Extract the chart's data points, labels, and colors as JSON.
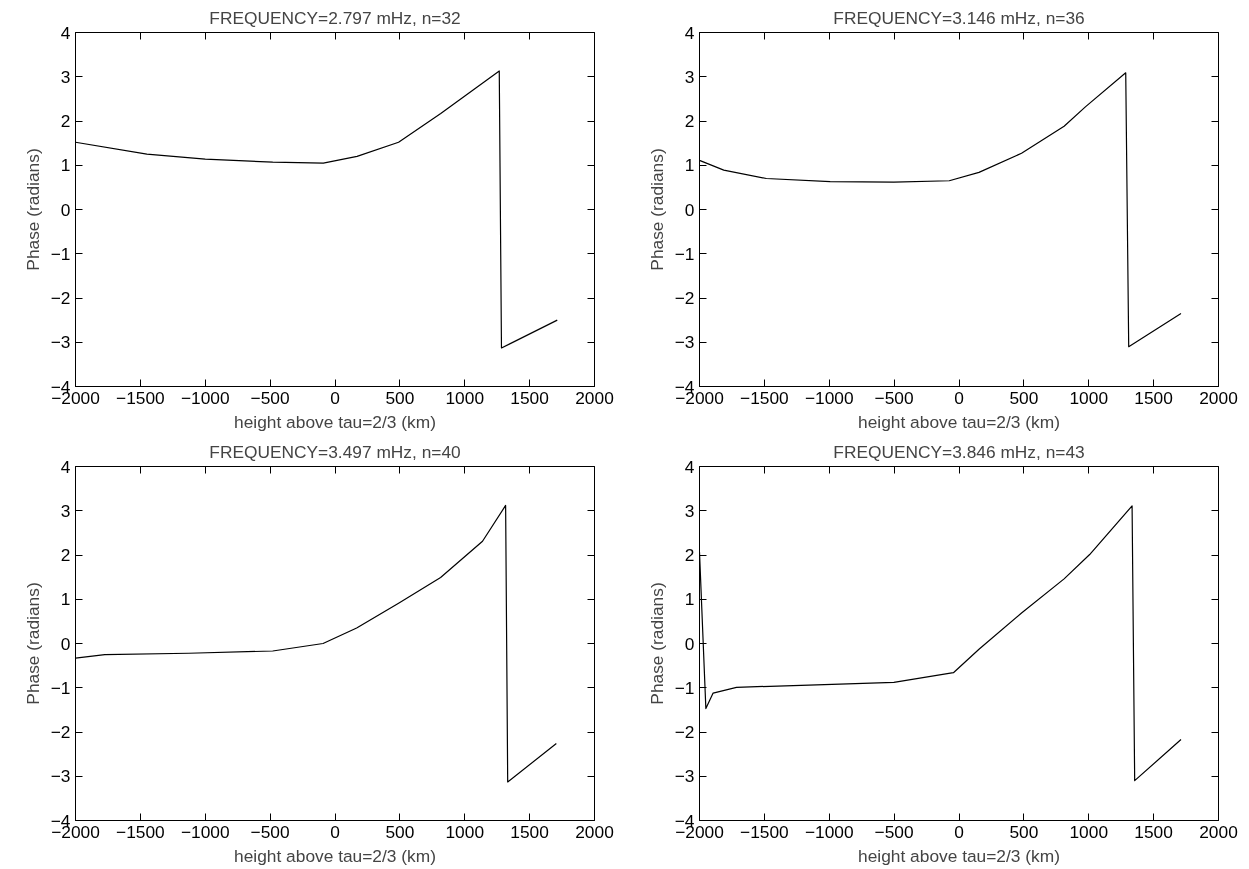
{
  "chart_data": [
    {
      "type": "line",
      "title": "FREQUENCY=2.797 mHz, n=32",
      "xlabel": "height above tau=2/3 (km)",
      "ylabel": "Phase (radians)",
      "xlim": [
        -2000,
        2000
      ],
      "ylim": [
        -4,
        4
      ],
      "xticks": [
        -2000,
        -1500,
        -1000,
        -500,
        0,
        500,
        1000,
        1500,
        2000
      ],
      "yticks": [
        -4,
        -3,
        -2,
        -1,
        0,
        1,
        2,
        3,
        4
      ],
      "series": [
        {
          "color": "#000000",
          "x": [
            -2000,
            -1450,
            -1000,
            -480,
            -90,
            170,
            490,
            815,
            1266,
            1283,
            1713
          ],
          "values": [
            1.52,
            1.25,
            1.14,
            1.07,
            1.05,
            1.2,
            1.52,
            2.17,
            3.13,
            -3.13,
            -2.5
          ]
        }
      ]
    },
    {
      "type": "line",
      "title": "FREQUENCY=3.146 mHz, n=36",
      "xlabel": "height above tau=2/3 (km)",
      "ylabel": "Phase (radians)",
      "xlim": [
        -2000,
        2000
      ],
      "ylim": [
        -4,
        4
      ],
      "xticks": [
        -2000,
        -1500,
        -1000,
        -500,
        0,
        500,
        1000,
        1500,
        2000
      ],
      "yticks": [
        -4,
        -3,
        -2,
        -1,
        0,
        1,
        2,
        3,
        4
      ],
      "series": [
        {
          "color": "#000000",
          "x": [
            -2000,
            -1813,
            -1485,
            -993,
            -502,
            -75,
            154,
            482,
            810,
            974,
            1285,
            1308,
            1711
          ],
          "values": [
            1.11,
            0.89,
            0.7,
            0.63,
            0.62,
            0.65,
            0.84,
            1.27,
            1.88,
            2.32,
            3.09,
            -3.1,
            -2.35
          ]
        }
      ]
    },
    {
      "type": "line",
      "title": "FREQUENCY=3.497 mHz, n=40",
      "xlabel": "height above tau=2/3 (km)",
      "ylabel": "Phase (radians)",
      "xlim": [
        -2000,
        2000
      ],
      "ylim": [
        -4,
        4
      ],
      "xticks": [
        -2000,
        -1500,
        -1000,
        -500,
        0,
        500,
        1000,
        1500,
        2000
      ],
      "yticks": [
        -4,
        -3,
        -2,
        -1,
        0,
        1,
        2,
        3,
        4
      ],
      "series": [
        {
          "color": "#000000",
          "x": [
            -2000,
            -1774,
            -1127,
            -480,
            -92,
            167,
            490,
            814,
            1137,
            1315,
            1331,
            1706
          ],
          "values": [
            -0.33,
            -0.25,
            -0.22,
            -0.17,
            0.0,
            0.35,
            0.91,
            1.49,
            2.31,
            3.12,
            -3.13,
            -2.26
          ]
        }
      ]
    },
    {
      "type": "line",
      "title": "FREQUENCY=3.846 mHz, n=43",
      "xlabel": "height above tau=2/3 (km)",
      "ylabel": "Phase (radians)",
      "xlim": [
        -2000,
        2000
      ],
      "ylim": [
        -4,
        4
      ],
      "xticks": [
        -2000,
        -1500,
        -1000,
        -500,
        0,
        500,
        1000,
        1500,
        2000
      ],
      "yticks": [
        -4,
        -3,
        -2,
        -1,
        0,
        1,
        2,
        3,
        4
      ],
      "series": [
        {
          "color": "#000000",
          "x": [
            -2000,
            -1951,
            -1895,
            -1715,
            -1157,
            -502,
            -43,
            154,
            482,
            810,
            1007,
            1334,
            1354,
            1711
          ],
          "values": [
            2.07,
            -1.47,
            -1.12,
            -0.99,
            -0.94,
            -0.88,
            -0.66,
            -0.13,
            0.69,
            1.46,
            2.01,
            3.11,
            -3.1,
            -2.17
          ]
        }
      ]
    }
  ]
}
